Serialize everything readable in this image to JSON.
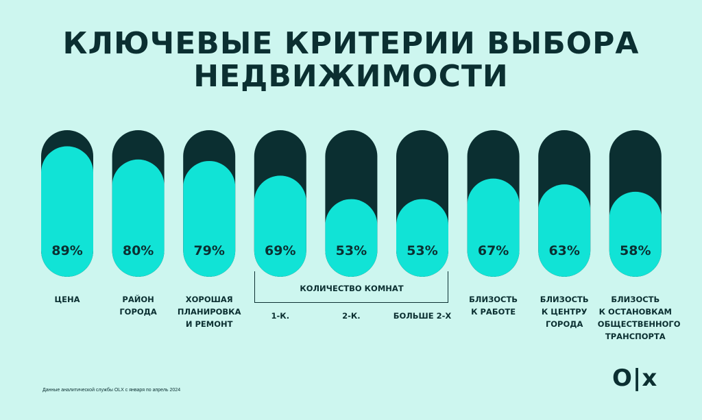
{
  "title": {
    "line1": "КЛЮЧЕВЫЕ КРИТЕРИИ ВЫБОРА",
    "line2": "НЕДВИЖИМОСТИ"
  },
  "colors": {
    "background": "#cdf6ef",
    "track": "#0b2f31",
    "fill": "#11e3d6",
    "text": "#0b2f31"
  },
  "chart_data": {
    "type": "bar",
    "title": "КЛЮЧЕВЫЕ КРИТЕРИИ ВЫБОРА НЕДВИЖИМОСТИ",
    "categories": [
      "ЦЕНА",
      "РАЙОН\nГОРОДА",
      "ХОРОШАЯ\nПЛАНИРОВКА\nИ РЕМОНТ",
      "1-К.",
      "2-К.",
      "БОЛЬШЕ 2-Х",
      "БЛИЗОСТЬ\nК РАБОТЕ",
      "БЛИЗОСТЬ\nК ЦЕНТРУ\nГОРОДА",
      "БЛИЗОСТЬ\nК ОСТАНОВКАМ\nОБЩЕСТВЕННОГО\nТРАНСПОРТА"
    ],
    "values": [
      89,
      80,
      79,
      69,
      53,
      53,
      67,
      63,
      58
    ],
    "value_labels": [
      "89%",
      "80%",
      "79%",
      "69%",
      "53%",
      "53%",
      "67%",
      "63%",
      "58%"
    ],
    "ylim": [
      0,
      100
    ],
    "group_label": "КОЛИЧЕСТВО КОМНАТ",
    "group_members": [
      "1-К.",
      "2-К.",
      "БОЛЬШЕ 2-Х"
    ]
  },
  "footnote": "Данные аналитической службы OLX с января по апрель 2024",
  "logo": "O|x"
}
